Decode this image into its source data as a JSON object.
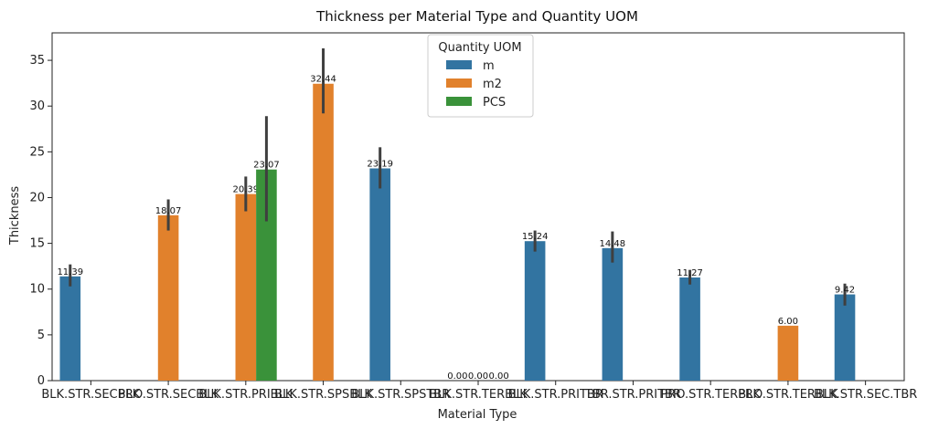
{
  "chart_data": {
    "type": "bar",
    "title": "Thickness per Material Type and Quantity UOM",
    "xlabel": "Material Type",
    "ylabel": "Thickness",
    "ylim": [
      0,
      38
    ],
    "yticks": [
      0,
      5,
      10,
      15,
      20,
      25,
      30,
      35
    ],
    "grid": false,
    "legend": {
      "title": "Quantity UOM",
      "placement": "top-center"
    },
    "categories": [
      "BLK.STR.SECBLK",
      "PRO.STR.SECBLK",
      "BLK.STR.PRIBLK",
      "BLK.STR.SPSBLK",
      "BLK.STR.SPSTBR",
      "BLK.STR.TERBLK",
      "BLK.STR.PRITBR",
      "TBR.STR.PRITBR",
      "PRO.STR.TERBLK",
      "PRO.STR.TERBLK",
      "BLK.STR.SEC.TBR"
    ],
    "series": [
      {
        "name": "m",
        "color": "#3274a1",
        "values": [
          11.39,
          null,
          null,
          null,
          23.19,
          0.0,
          15.24,
          14.48,
          11.27,
          null,
          9.42
        ],
        "ci": [
          [
            10.3,
            12.7
          ],
          null,
          null,
          null,
          [
            21.0,
            25.5
          ],
          null,
          [
            14.1,
            16.4
          ],
          [
            12.9,
            16.3
          ],
          [
            10.5,
            12.1
          ],
          null,
          [
            8.2,
            10.6
          ]
        ],
        "labels": [
          "11.39",
          null,
          null,
          null,
          "23.19",
          "0.00",
          "15.24",
          "14.48",
          "11.27",
          null,
          "9.42"
        ]
      },
      {
        "name": "m2",
        "color": "#e1812c",
        "values": [
          null,
          18.07,
          20.39,
          32.44,
          null,
          0.0,
          null,
          null,
          null,
          6.0,
          null
        ],
        "ci": [
          null,
          [
            16.4,
            19.8
          ],
          [
            18.5,
            22.3
          ],
          [
            29.2,
            36.3
          ],
          null,
          null,
          null,
          null,
          null,
          null,
          null
        ],
        "labels": [
          null,
          "18.07",
          "20.39",
          "32.44",
          null,
          "0.00",
          null,
          null,
          null,
          "6.00",
          null
        ]
      },
      {
        "name": "PCS",
        "color": "#3a923a",
        "values": [
          null,
          null,
          23.07,
          null,
          null,
          0.0,
          null,
          null,
          null,
          null,
          null
        ],
        "ci": [
          null,
          null,
          [
            17.4,
            28.9
          ],
          null,
          null,
          null,
          null,
          null,
          null,
          null,
          null
        ],
        "labels": [
          null,
          null,
          "23.07",
          null,
          null,
          "0.00",
          null,
          null,
          null,
          null,
          null
        ]
      }
    ]
  }
}
